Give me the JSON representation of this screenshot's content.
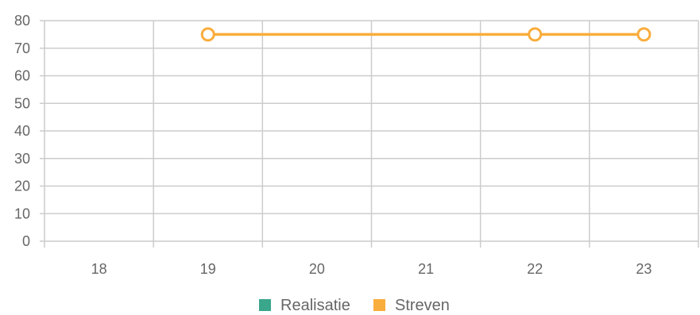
{
  "chart_data": {
    "type": "line",
    "title": "",
    "xlabel": "",
    "ylabel": "",
    "categories": [
      "18",
      "19",
      "20",
      "21",
      "22",
      "23"
    ],
    "ylim": [
      0,
      80
    ],
    "yticks": [
      "0",
      "10",
      "20",
      "30",
      "40",
      "50",
      "60",
      "70",
      "80"
    ],
    "grid": true,
    "legend_position": "bottom-center",
    "series": [
      {
        "name": "Realisatie",
        "color": "#3aa68c",
        "values": [
          null,
          null,
          null,
          null,
          null,
          null
        ]
      },
      {
        "name": "Streven",
        "color": "#f9ad3c",
        "values": [
          null,
          75,
          75,
          75,
          75,
          75
        ],
        "markers": [
          false,
          true,
          false,
          false,
          true,
          true
        ]
      }
    ]
  }
}
